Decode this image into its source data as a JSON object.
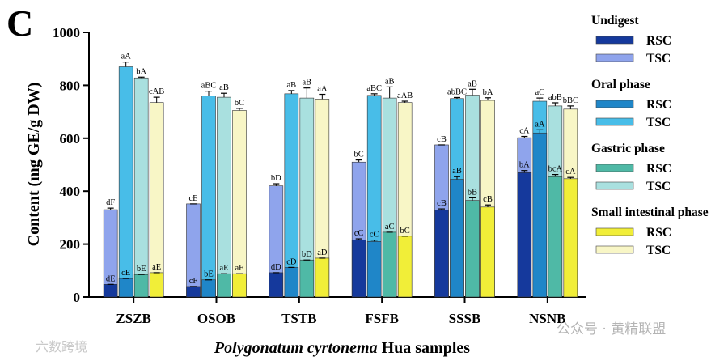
{
  "panel_label": "C",
  "watermark": {
    "left": "六数跨境",
    "right": "公众号 · 黄精联盟"
  },
  "legend": {
    "groups": [
      {
        "title": "Undigest",
        "items": [
          {
            "label": "RSC",
            "color": "#15399c"
          },
          {
            "label": "TSC",
            "color": "#8fa4ec"
          }
        ]
      },
      {
        "title": "Oral phase",
        "items": [
          {
            "label": "RSC",
            "color": "#1f86c8"
          },
          {
            "label": "TSC",
            "color": "#48bde8"
          }
        ]
      },
      {
        "title": "Gastric phase",
        "items": [
          {
            "label": "RSC",
            "color": "#4fb9a6"
          },
          {
            "label": "TSC",
            "color": "#a9e0df"
          }
        ]
      },
      {
        "title": "Small intestinal phase",
        "items": [
          {
            "label": "RSC",
            "color": "#f1ee38"
          },
          {
            "label": "TSC",
            "color": "#f8f6c6"
          }
        ]
      }
    ]
  },
  "chart_data": {
    "type": "bar",
    "title": "",
    "ylabel": "Content (mg GE/g DW)",
    "xlabel_italic": "Polygonatum cyrtonema",
    "xlabel_rest": " Hua samples",
    "ylim": [
      0,
      1000
    ],
    "yticks": [
      0,
      200,
      400,
      600,
      800,
      1000
    ],
    "categories": [
      "ZSZB",
      "OSOB",
      "TSTB",
      "FSFB",
      "SSSB",
      "NSNB"
    ],
    "phases": [
      "Undigest",
      "Oral phase",
      "Gastric phase",
      "Small intestinal phase"
    ],
    "series": [
      {
        "name": "Undigest",
        "rsc_color": "#15399c",
        "tsc_color": "#8fa4ec",
        "tsc": [
          330,
          352,
          420,
          510,
          575,
          602
        ],
        "tsc_err": [
          6,
          0,
          8,
          8,
          0,
          5
        ],
        "rsc": [
          48,
          40,
          92,
          215,
          328,
          470
        ],
        "rsc_err": [
          0,
          0,
          0,
          5,
          5,
          8
        ],
        "tsc_labels": [
          "dF",
          "cE",
          "bD",
          "bC",
          "cB",
          "cA"
        ],
        "rsc_labels": [
          "dE",
          "cF",
          "dD",
          "cC",
          "cB",
          "bA"
        ]
      },
      {
        "name": "Oral phase",
        "rsc_color": "#1f86c8",
        "tsc_color": "#48bde8",
        "tsc": [
          870,
          760,
          768,
          762,
          750,
          740
        ],
        "tsc_err": [
          18,
          18,
          12,
          6,
          4,
          12
        ],
        "rsc": [
          70,
          65,
          112,
          210,
          445,
          620
        ],
        "rsc_err": [
          0,
          0,
          0,
          5,
          10,
          12
        ],
        "tsc_labels": [
          "aA",
          "aBC",
          "aB",
          "aBC",
          "abBC",
          "aC"
        ],
        "rsc_labels": [
          "cE",
          "bE",
          "cD",
          "cC",
          "aB",
          "aA"
        ]
      },
      {
        "name": "Gastric phase",
        "rsc_color": "#4fb9a6",
        "tsc_color": "#a9e0df",
        "tsc": [
          828,
          755,
          752,
          752,
          763,
          722
        ],
        "tsc_err": [
          3,
          15,
          38,
          42,
          22,
          12
        ],
        "rsc": [
          85,
          88,
          140,
          245,
          365,
          455
        ],
        "rsc_err": [
          0,
          0,
          0,
          0,
          10,
          8
        ],
        "tsc_labels": [
          "bA",
          "aB",
          "aB",
          "aB",
          "aB",
          "abB"
        ],
        "rsc_labels": [
          "bE",
          "aE",
          "bD",
          "aC",
          "bB",
          "bcA"
        ]
      },
      {
        "name": "Small intestinal phase",
        "rsc_color": "#f1ee38",
        "tsc_color": "#f8f6c6",
        "tsc": [
          735,
          705,
          748,
          735,
          743,
          710
        ],
        "tsc_err": [
          20,
          8,
          18,
          5,
          10,
          12
        ],
        "rsc": [
          92,
          88,
          147,
          230,
          340,
          447
        ],
        "rsc_err": [
          0,
          0,
          0,
          0,
          8,
          5
        ],
        "tsc_labels": [
          "cAB",
          "bC",
          "aA",
          "aAB",
          "bA",
          "bBC"
        ],
        "rsc_labels": [
          "aE",
          "aE",
          "aD",
          "bC",
          "cB",
          "cA"
        ]
      }
    ]
  }
}
